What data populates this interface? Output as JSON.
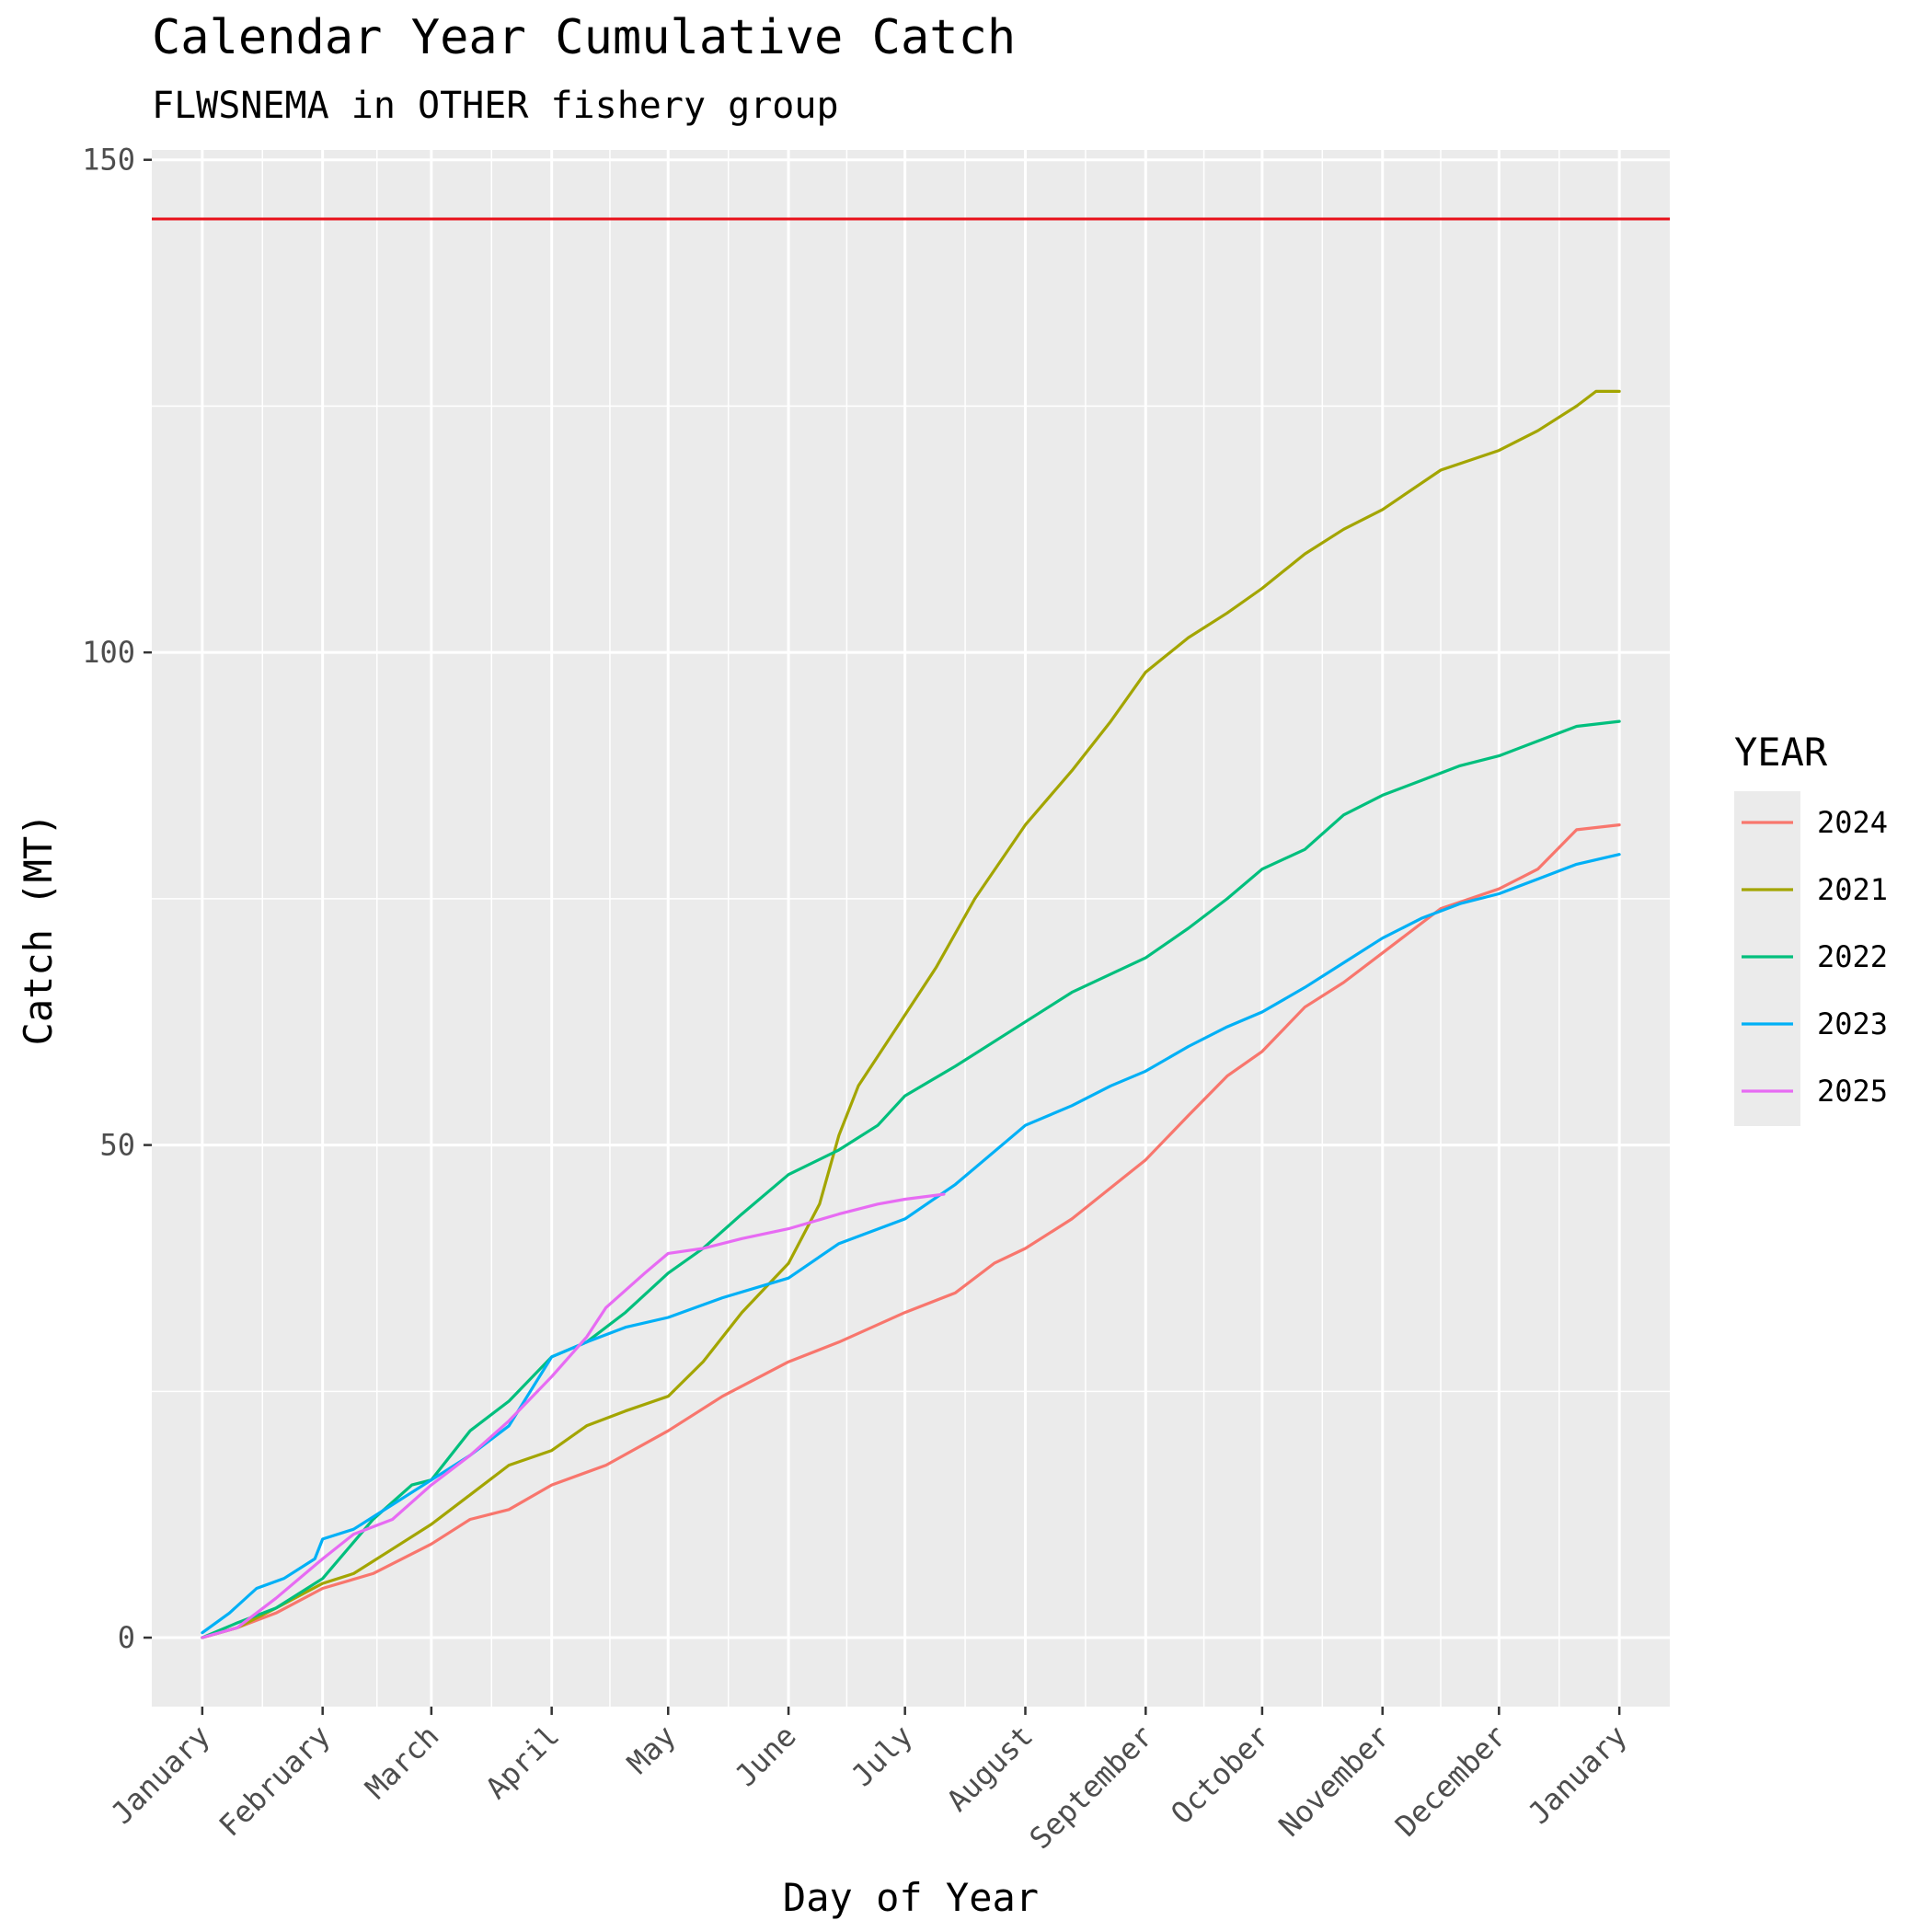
{
  "chart_data": {
    "type": "line",
    "title": "Calendar Year Cumulative Catch",
    "subtitle": "FLWSNEMA in OTHER fishery group",
    "xlabel": "Day of Year",
    "ylabel": "Catch (MT)",
    "x_unit": "day of year",
    "xlim": [
      -12,
      379
    ],
    "ylim": [
      -7,
      151
    ],
    "x_ticks": [
      {
        "label": "January",
        "day": 1
      },
      {
        "label": "February",
        "day": 32
      },
      {
        "label": "March",
        "day": 60
      },
      {
        "label": "April",
        "day": 91
      },
      {
        "label": "May",
        "day": 121
      },
      {
        "label": "June",
        "day": 152
      },
      {
        "label": "July",
        "day": 182
      },
      {
        "label": "August",
        "day": 213
      },
      {
        "label": "September",
        "day": 244
      },
      {
        "label": "October",
        "day": 274
      },
      {
        "label": "November",
        "day": 305
      },
      {
        "label": "December",
        "day": 335
      },
      {
        "label": "January",
        "day": 366
      }
    ],
    "y_ticks": [
      0,
      50,
      100,
      150
    ],
    "grid": true,
    "background": "#EBEBEB",
    "reference_line": {
      "y": 144,
      "color": "#E8101A"
    },
    "legend": {
      "title": "YEAR",
      "position": "right"
    },
    "series": [
      {
        "name": "2024",
        "color": "#F8766D",
        "points": [
          [
            1,
            0
          ],
          [
            10,
            1
          ],
          [
            20,
            2.5
          ],
          [
            32,
            5
          ],
          [
            45,
            6.5
          ],
          [
            60,
            9.5
          ],
          [
            70,
            12
          ],
          [
            80,
            13
          ],
          [
            91,
            15.5
          ],
          [
            105,
            17.5
          ],
          [
            121,
            21
          ],
          [
            135,
            24.5
          ],
          [
            152,
            28
          ],
          [
            165,
            30
          ],
          [
            182,
            33
          ],
          [
            195,
            35
          ],
          [
            205,
            38
          ],
          [
            213,
            39.5
          ],
          [
            225,
            42.5
          ],
          [
            244,
            48.5
          ],
          [
            255,
            53
          ],
          [
            265,
            57
          ],
          [
            274,
            59.5
          ],
          [
            285,
            64
          ],
          [
            295,
            66.5
          ],
          [
            305,
            69.5
          ],
          [
            320,
            74
          ],
          [
            335,
            76
          ],
          [
            345,
            78
          ],
          [
            355,
            82
          ],
          [
            366,
            82.5
          ]
        ]
      },
      {
        "name": "2021",
        "color": "#A3A500",
        "points": [
          [
            1,
            0
          ],
          [
            10,
            1
          ],
          [
            20,
            3
          ],
          [
            32,
            5.5
          ],
          [
            40,
            6.5
          ],
          [
            50,
            9
          ],
          [
            60,
            11.5
          ],
          [
            70,
            14.5
          ],
          [
            80,
            17.5
          ],
          [
            91,
            19
          ],
          [
            100,
            21.5
          ],
          [
            110,
            23
          ],
          [
            121,
            24.5
          ],
          [
            130,
            28
          ],
          [
            140,
            33
          ],
          [
            152,
            38
          ],
          [
            160,
            44
          ],
          [
            165,
            51
          ],
          [
            170,
            56
          ],
          [
            180,
            62
          ],
          [
            190,
            68
          ],
          [
            200,
            75
          ],
          [
            213,
            82.5
          ],
          [
            225,
            88
          ],
          [
            235,
            93
          ],
          [
            244,
            98
          ],
          [
            255,
            101.5
          ],
          [
            265,
            104
          ],
          [
            274,
            106.5
          ],
          [
            285,
            110
          ],
          [
            295,
            112.5
          ],
          [
            305,
            114.5
          ],
          [
            320,
            118.5
          ],
          [
            335,
            120.5
          ],
          [
            345,
            122.5
          ],
          [
            355,
            125
          ],
          [
            360,
            126.5
          ],
          [
            366,
            126.5
          ]
        ]
      },
      {
        "name": "2022",
        "color": "#00BF7D",
        "points": [
          [
            1,
            0
          ],
          [
            10,
            1.5
          ],
          [
            20,
            3
          ],
          [
            32,
            6
          ],
          [
            45,
            12
          ],
          [
            55,
            15.5
          ],
          [
            60,
            16
          ],
          [
            70,
            21
          ],
          [
            80,
            24
          ],
          [
            91,
            28.5
          ],
          [
            100,
            30
          ],
          [
            110,
            33
          ],
          [
            121,
            37
          ],
          [
            130,
            39.5
          ],
          [
            140,
            43
          ],
          [
            152,
            47
          ],
          [
            165,
            49.5
          ],
          [
            175,
            52
          ],
          [
            182,
            55
          ],
          [
            195,
            58
          ],
          [
            213,
            62.5
          ],
          [
            225,
            65.5
          ],
          [
            244,
            69
          ],
          [
            255,
            72
          ],
          [
            265,
            75
          ],
          [
            274,
            78
          ],
          [
            285,
            80
          ],
          [
            295,
            83.5
          ],
          [
            305,
            85.5
          ],
          [
            315,
            87
          ],
          [
            325,
            88.5
          ],
          [
            335,
            89.5
          ],
          [
            345,
            91
          ],
          [
            355,
            92.5
          ],
          [
            366,
            93
          ]
        ]
      },
      {
        "name": "2023",
        "color": "#00B0F6",
        "points": [
          [
            1,
            0.5
          ],
          [
            8,
            2.5
          ],
          [
            15,
            5
          ],
          [
            22,
            6
          ],
          [
            30,
            8
          ],
          [
            32,
            10
          ],
          [
            40,
            11
          ],
          [
            50,
            13.5
          ],
          [
            60,
            16
          ],
          [
            70,
            18.5
          ],
          [
            80,
            21.5
          ],
          [
            91,
            28.5
          ],
          [
            100,
            30
          ],
          [
            110,
            31.5
          ],
          [
            121,
            32.5
          ],
          [
            135,
            34.5
          ],
          [
            152,
            36.5
          ],
          [
            165,
            40
          ],
          [
            182,
            42.5
          ],
          [
            195,
            46
          ],
          [
            213,
            52
          ],
          [
            225,
            54
          ],
          [
            235,
            56
          ],
          [
            244,
            57.5
          ],
          [
            255,
            60
          ],
          [
            265,
            62
          ],
          [
            274,
            63.5
          ],
          [
            285,
            66
          ],
          [
            295,
            68.5
          ],
          [
            305,
            71
          ],
          [
            315,
            73
          ],
          [
            325,
            74.5
          ],
          [
            335,
            75.5
          ],
          [
            345,
            77
          ],
          [
            355,
            78.5
          ],
          [
            366,
            79.5
          ]
        ]
      },
      {
        "name": "2025",
        "color": "#E76BF3",
        "points": [
          [
            1,
            0
          ],
          [
            10,
            1
          ],
          [
            20,
            4
          ],
          [
            32,
            8
          ],
          [
            40,
            10.5
          ],
          [
            50,
            12
          ],
          [
            60,
            15.5
          ],
          [
            70,
            18.5
          ],
          [
            80,
            22
          ],
          [
            91,
            26.5
          ],
          [
            100,
            30.5
          ],
          [
            105,
            33.5
          ],
          [
            115,
            37
          ],
          [
            121,
            39
          ],
          [
            130,
            39.5
          ],
          [
            140,
            40.5
          ],
          [
            152,
            41.5
          ],
          [
            165,
            43
          ],
          [
            175,
            44
          ],
          [
            182,
            44.5
          ],
          [
            192,
            45
          ]
        ]
      }
    ]
  }
}
